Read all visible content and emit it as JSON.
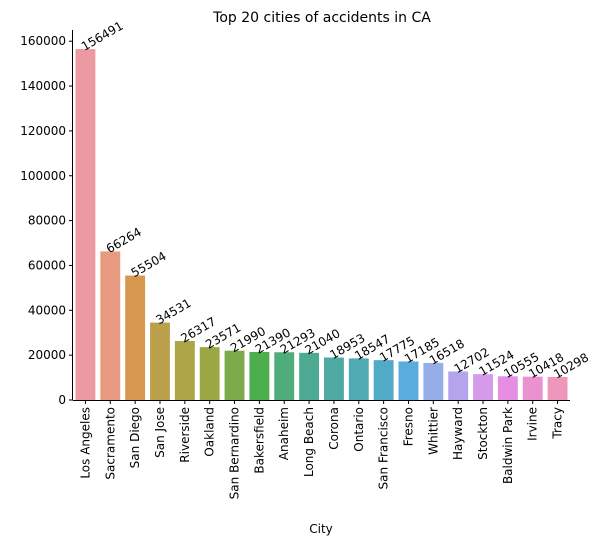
{
  "chart_data": {
    "type": "bar",
    "title": "Top 20 cities of accidents in CA",
    "xlabel": "City",
    "ylabel": "",
    "ylim": [
      0,
      165000
    ],
    "yticks": [
      0,
      20000,
      40000,
      60000,
      80000,
      100000,
      120000,
      140000,
      160000
    ],
    "ytick_labels": [
      "0",
      "20000",
      "40000",
      "60000",
      "80000",
      "100000",
      "120000",
      "140000",
      "160000"
    ],
    "grid": false,
    "legend": "none",
    "categories": [
      "Los Angeles",
      "Sacramento",
      "San Diego",
      "San Jose",
      "Riverside",
      "Oakland",
      "San Bernardino",
      "Bakersfield",
      "Anaheim",
      "Long Beach",
      "Corona",
      "Ontario",
      "San Francisco",
      "Fresno",
      "Whittier",
      "Hayward",
      "Stockton",
      "Baldwin Park",
      "Irvine",
      "Tracy"
    ],
    "values": [
      156491,
      66264,
      55504,
      34531,
      26317,
      23571,
      21990,
      21390,
      21293,
      21040,
      18953,
      18547,
      17775,
      17185,
      16518,
      12702,
      11524,
      10555,
      10418,
      10298
    ],
    "data_labels": [
      "156491",
      "66264",
      "55504",
      "34531",
      "26317",
      "23571",
      "21990",
      "21390",
      "21293",
      "21040",
      "18953",
      "18547",
      "17775",
      "17185",
      "16518",
      "12702",
      "11524",
      "10555",
      "10418",
      "10298"
    ],
    "colors": [
      "#ec9aa1",
      "#e79a7f",
      "#d6984f",
      "#bba04c",
      "#ada347",
      "#9ba645",
      "#7eab4a",
      "#4dae4e",
      "#4fad7b",
      "#4eab93",
      "#4eaaa3",
      "#4faab3",
      "#52abc6",
      "#5aabde",
      "#97adea",
      "#b5a4eb",
      "#d59ae9",
      "#e68ee3",
      "#ea92d1",
      "#ed97bb"
    ]
  }
}
